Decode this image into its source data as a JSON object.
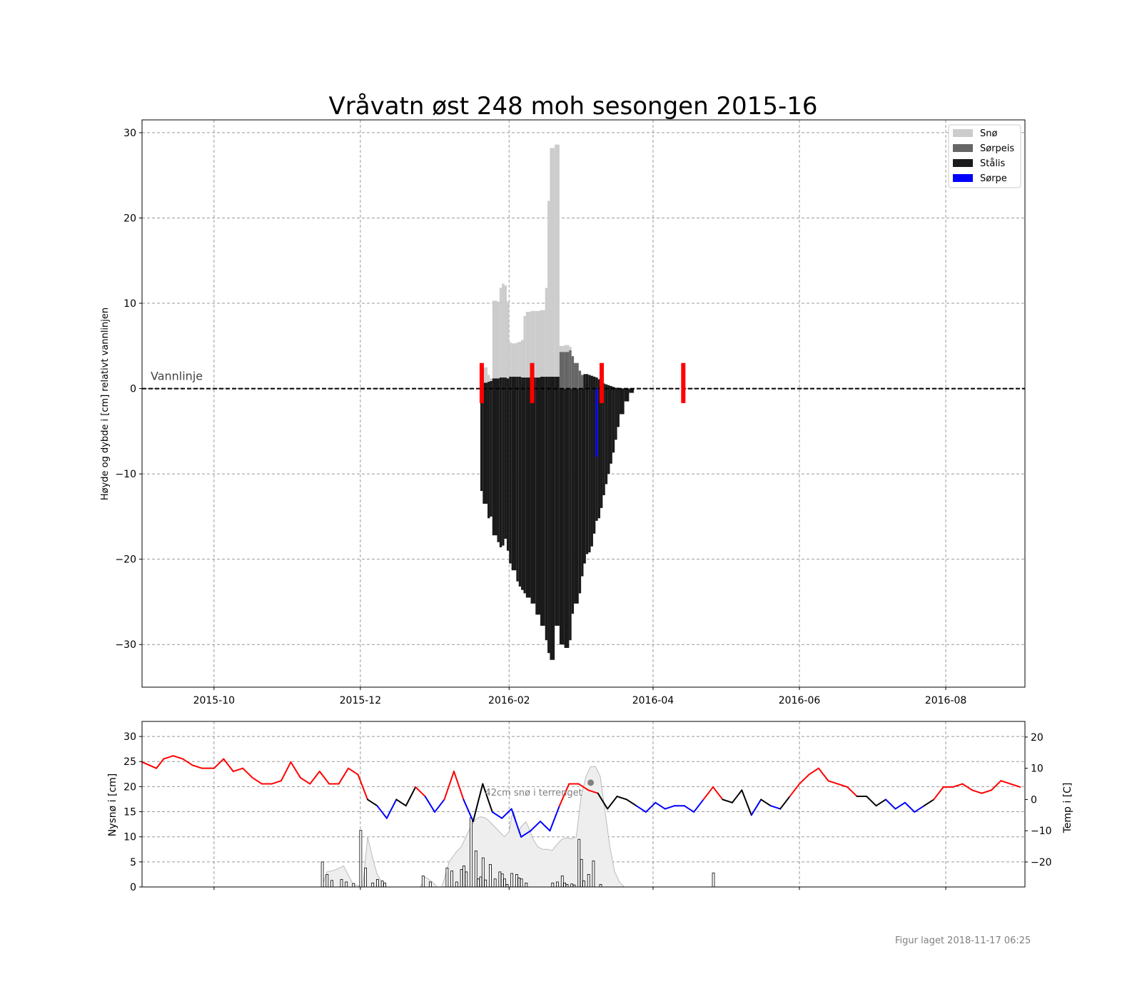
{
  "title": "Vråvatn øst 248 moh sesongen 2015-16",
  "footer": "Figur laget 2018-11-17 06:25",
  "colors": {
    "snow": "#cccccc",
    "slush_ice": "#666666",
    "black_ice": "#1a1a1a",
    "slush": "#0000ff",
    "obs_marker": "#ff0000",
    "temp_warm": "#ff0000",
    "temp_cold": "#0000ff",
    "temp_mid": "#000000"
  },
  "chart_data": [
    {
      "type": "area",
      "title": "Vråvatn øst 248 moh sesongen 2015-16",
      "ylabel": "Høyde og dybde i [cm] relativt vannlinjen",
      "ylim": [
        -35,
        31.5
      ],
      "xlim": [
        "2015-09-01",
        "2016-09-03"
      ],
      "yticks": [
        30,
        20,
        10,
        0,
        -10,
        -20,
        -30
      ],
      "ytick_labels": [
        "30",
        "20",
        "10",
        "0",
        "−10",
        "−20",
        "−30"
      ],
      "xticks": [
        "2015-10-01",
        "2015-12-01",
        "2016-02-01",
        "2016-04-01",
        "2016-06-01",
        "2016-08-01"
      ],
      "xtick_labels": [
        "2015-10",
        "2015-12",
        "2016-02",
        "2016-04",
        "2016-06",
        "2016-08"
      ],
      "grid": true,
      "legend_position": "top-right",
      "legend": [
        "Snø",
        "Sørpeis",
        "Stålis",
        "Sørpe"
      ],
      "waterline": {
        "label": "Vannlinje",
        "y": 0
      },
      "layers": {
        "dates": [
          "2016-01-20",
          "2016-01-21",
          "2016-01-23",
          "2016-01-24",
          "2016-01-25",
          "2016-01-27",
          "2016-01-28",
          "2016-01-29",
          "2016-01-30",
          "2016-01-31",
          "2016-02-01",
          "2016-02-02",
          "2016-02-04",
          "2016-02-05",
          "2016-02-06",
          "2016-02-07",
          "2016-02-08",
          "2016-02-10",
          "2016-02-12",
          "2016-02-14",
          "2016-02-16",
          "2016-02-17",
          "2016-02-18",
          "2016-02-20",
          "2016-02-22",
          "2016-02-24",
          "2016-02-26",
          "2016-02-27",
          "2016-02-28",
          "2016-03-01",
          "2016-03-02",
          "2016-03-03",
          "2016-03-04",
          "2016-03-05",
          "2016-03-06",
          "2016-03-07",
          "2016-03-08",
          "2016-03-09",
          "2016-03-10",
          "2016-03-11",
          "2016-03-12",
          "2016-03-13",
          "2016-03-14",
          "2016-03-15",
          "2016-03-16",
          "2016-03-17",
          "2016-03-18",
          "2016-03-20",
          "2016-03-22",
          "2016-03-24",
          "2016-03-26",
          "2016-03-28",
          "2016-03-30",
          "2016-04-01",
          "2016-04-03",
          "2016-04-05",
          "2016-04-07",
          "2016-04-09",
          "2016-04-11",
          "2016-04-13",
          "2016-04-14",
          "2016-04-15",
          "2016-04-16"
        ],
        "top": [
          2.2,
          2.5,
          1.6,
          1.2,
          10.3,
          10.2,
          11.8,
          12.3,
          12.1,
          10.2,
          5.4,
          5.3,
          5.4,
          5.5,
          5.7,
          8.5,
          9.0,
          9.1,
          9.1,
          9.2,
          11.8,
          22.0,
          28.2,
          28.6,
          5.0,
          5.1,
          4.9,
          3.8,
          3.0,
          2.1,
          1.6,
          1.7,
          1.7,
          1.6,
          1.5,
          1.4,
          1.3,
          1.1,
          0.9,
          0.6,
          0.5,
          0.4,
          0.3,
          0.2,
          0.1,
          0.1,
          0.0,
          0.0,
          0.0,
          0.0,
          0.0,
          0.0,
          0.0,
          0.0,
          0.0,
          0.0,
          0.0,
          0.0,
          0.0,
          0.0,
          0.0,
          0.0,
          0.0
        ],
        "snow": [
          1.3,
          1.8,
          0.8,
          0.3,
          9.1,
          9.0,
          10.5,
          11.0,
          10.8,
          9.0,
          4.0,
          3.9,
          4.0,
          4.1,
          4.4,
          7.2,
          7.7,
          7.8,
          7.8,
          7.8,
          10.4,
          20.6,
          26.8,
          27.2,
          0.7,
          0.8,
          0.4,
          0.0,
          0.0,
          0.0,
          0.0,
          0.0,
          0.0,
          0.0,
          0.0,
          0.0,
          0.0,
          0.0,
          0.0,
          0.0,
          0.0,
          0.0,
          0.0,
          0.0,
          0.0,
          0.0,
          0.0,
          0.0,
          0.0,
          0.0,
          0.0,
          0.0,
          0.0,
          0.0,
          0.0,
          0.0,
          0.0,
          0.0,
          0.0,
          0.0,
          0.0,
          0.0,
          0.0
        ],
        "slush_ice": [
          0,
          0,
          0,
          0,
          0,
          0,
          0,
          0,
          0,
          0,
          0,
          0,
          0,
          0,
          0,
          0,
          0,
          0,
          0,
          0,
          0,
          0,
          0,
          0,
          4.3,
          4.3,
          4.5,
          3.8,
          3.0,
          2.1,
          1.6,
          0,
          0,
          0,
          0,
          0,
          0,
          0,
          0,
          0,
          0,
          0,
          0,
          0,
          0,
          0,
          0,
          0,
          0,
          0,
          0,
          0,
          0,
          0,
          0,
          0,
          0,
          0,
          0,
          0,
          0,
          0,
          0
        ],
        "ice_top": [
          0.9,
          0.7,
          0.8,
          0.9,
          1.2,
          1.2,
          1.3,
          1.3,
          1.3,
          1.2,
          1.4,
          1.4,
          1.4,
          1.4,
          1.3,
          1.3,
          1.3,
          1.3,
          1.3,
          1.4,
          1.4,
          1.4,
          1.4,
          1.4,
          0.0,
          0.0,
          0.0,
          0.0,
          0.0,
          0.0,
          0.0,
          1.7,
          1.7,
          1.6,
          1.5,
          1.4,
          1.3,
          1.1,
          0.9,
          0.6,
          0.5,
          0.4,
          0.3,
          0.2,
          0.1,
          0.1,
          0.0,
          0.0,
          0.0,
          0.0,
          0.0,
          0.0,
          0.0,
          0.0,
          0.0,
          0.0,
          0.0,
          0.0,
          0.0,
          0.0,
          0.0,
          0.0,
          0.0
        ],
        "ice_bottom": [
          -12.0,
          -13.5,
          -15.2,
          -15.0,
          -17.2,
          -18.0,
          -18.6,
          -18.4,
          -17.6,
          -19.0,
          -20.5,
          -21.3,
          -22.6,
          -23.2,
          -23.6,
          -24.0,
          -24.5,
          -25.2,
          -26.5,
          -27.8,
          -29.5,
          -31.0,
          -31.8,
          -27.8,
          -30.0,
          -30.4,
          -29.5,
          -26.4,
          -25.2,
          -24.0,
          -22.0,
          -20.5,
          -19.4,
          -19.2,
          -18.5,
          -17.0,
          -15.5,
          -15.2,
          -14.0,
          -12.5,
          -11.2,
          -10.0,
          -8.8,
          -7.5,
          -6.0,
          -4.5,
          -3.0,
          -1.5,
          -0.5,
          0,
          0,
          0,
          0,
          0,
          0,
          0,
          0,
          0,
          0,
          0,
          0,
          0,
          0
        ],
        "slush_marks": [
          {
            "date": "2016-03-08",
            "from": 0.0,
            "to": -8.0
          }
        ]
      },
      "observations": [
        "2016-01-20",
        "2016-02-10",
        "2016-03-10",
        "2016-04-13"
      ]
    },
    {
      "type": "bar",
      "ylabel": "Nysnø i [cm]",
      "ylabel_right": "Temp i [C]",
      "ylim": [
        0,
        33
      ],
      "y2lim": [
        -28,
        25
      ],
      "yticks": [
        30,
        25,
        20,
        15,
        10,
        5,
        0
      ],
      "ytick_labels": [
        "30",
        "25",
        "20",
        "15",
        "10",
        "5",
        "0"
      ],
      "y2ticks": [
        20,
        10,
        0,
        -10,
        -20
      ],
      "y2tick_labels": [
        "20",
        "10",
        "0",
        "−10",
        "−20"
      ],
      "annotation": {
        "text": "42cm snø i terrenget",
        "date": "2016-03-06",
        "value": 20.5
      },
      "snow_bars": {
        "dates": [
          "2015-11-15",
          "2015-11-17",
          "2015-11-19",
          "2015-11-23",
          "2015-11-25",
          "2015-11-28",
          "2015-12-01",
          "2015-12-03",
          "2015-12-06",
          "2015-12-08",
          "2015-12-10",
          "2015-12-11",
          "2015-12-27",
          "2015-12-30",
          "2016-01-06",
          "2016-01-08",
          "2016-01-10",
          "2016-01-12",
          "2016-01-13",
          "2016-01-14",
          "2016-01-16",
          "2016-01-18",
          "2016-01-19",
          "2016-01-20",
          "2016-01-21",
          "2016-01-22",
          "2016-01-24",
          "2016-01-26",
          "2016-01-28",
          "2016-01-29",
          "2016-01-30",
          "2016-01-31",
          "2016-02-02",
          "2016-02-04",
          "2016-02-05",
          "2016-02-06",
          "2016-02-08",
          "2016-02-19",
          "2016-02-21",
          "2016-02-23",
          "2016-02-24",
          "2016-02-25",
          "2016-02-27",
          "2016-02-28",
          "2016-03-01",
          "2016-03-02",
          "2016-03-03",
          "2016-03-05",
          "2016-03-07",
          "2016-03-10",
          "2016-04-26"
        ],
        "values": [
          5,
          2.5,
          1.3,
          1.5,
          1,
          0.7,
          11.3,
          3.8,
          0.8,
          1.5,
          1.2,
          0.8,
          2.2,
          1,
          3.8,
          3.2,
          1,
          3.5,
          4.2,
          3,
          13.8,
          7.2,
          1.6,
          2,
          5.8,
          1.4,
          4.5,
          1.6,
          3,
          2.6,
          1.6,
          0.5,
          2.7,
          2.5,
          1.8,
          1.6,
          0.8,
          0.8,
          1,
          2.2,
          0.8,
          0.5,
          0.6,
          0.4,
          9.5,
          5.5,
          1.2,
          2.5,
          5.2,
          0.5,
          2.8
        ]
      },
      "snow_depth": {
        "dates": [
          "2015-11-15",
          "2015-11-17",
          "2015-11-20",
          "2015-11-24",
          "2015-11-28",
          "2015-12-02",
          "2015-12-04",
          "2015-12-06",
          "2015-12-08",
          "2015-12-10",
          "2015-12-12",
          "2015-12-14",
          "2015-12-16",
          "2015-12-18",
          "2015-12-20",
          "2015-12-22",
          "2015-12-24",
          "2015-12-26",
          "2015-12-28",
          "2015-12-31",
          "2016-01-02",
          "2016-01-04",
          "2016-01-07",
          "2016-01-10",
          "2016-01-12",
          "2016-01-14",
          "2016-01-16",
          "2016-01-18",
          "2016-01-20",
          "2016-01-22",
          "2016-01-24",
          "2016-01-26",
          "2016-01-28",
          "2016-01-30",
          "2016-02-01",
          "2016-02-02",
          "2016-02-03",
          "2016-02-05",
          "2016-02-06",
          "2016-02-08",
          "2016-02-09",
          "2016-02-11",
          "2016-02-13",
          "2016-02-15",
          "2016-02-17",
          "2016-02-19",
          "2016-02-21",
          "2016-02-23",
          "2016-02-25",
          "2016-02-27",
          "2016-02-29",
          "2016-03-02",
          "2016-03-04",
          "2016-03-06",
          "2016-03-08",
          "2016-03-10",
          "2016-03-12",
          "2016-03-14",
          "2016-03-16",
          "2016-03-18",
          "2016-03-20"
        ],
        "values": [
          0,
          3,
          3.3,
          4.2,
          0.5,
          0,
          10,
          6,
          2.5,
          1,
          0,
          0,
          0,
          0,
          0,
          0,
          0,
          0,
          2,
          1,
          0,
          0,
          5,
          7,
          8,
          10,
          12,
          13.5,
          14,
          13.8,
          13,
          12,
          11,
          10,
          11,
          14,
          15,
          11,
          12,
          13,
          12,
          9.5,
          8,
          7.5,
          7.5,
          7.3,
          8.5,
          9.5,
          9.8,
          9.6,
          10,
          18,
          22,
          24,
          24,
          22,
          15,
          8,
          3,
          1,
          0
        ]
      },
      "temperature": {
        "dates": [
          "2015-09-01",
          "2015-09-04",
          "2015-09-07",
          "2015-09-10",
          "2015-09-14",
          "2015-09-18",
          "2015-09-22",
          "2015-09-26",
          "2015-10-01",
          "2015-10-05",
          "2015-10-09",
          "2015-10-13",
          "2015-10-17",
          "2015-10-21",
          "2015-10-25",
          "2015-10-29",
          "2015-11-02",
          "2015-11-06",
          "2015-11-10",
          "2015-11-14",
          "2015-11-18",
          "2015-11-22",
          "2015-11-26",
          "2015-11-30",
          "2015-12-04",
          "2015-12-08",
          "2015-12-12",
          "2015-12-16",
          "2015-12-20",
          "2015-12-24",
          "2015-12-28",
          "2016-01-01",
          "2016-01-05",
          "2016-01-09",
          "2016-01-13",
          "2016-01-17",
          "2016-01-21",
          "2016-01-25",
          "2016-01-29",
          "2016-02-02",
          "2016-02-06",
          "2016-02-10",
          "2016-02-14",
          "2016-02-18",
          "2016-02-22",
          "2016-02-26",
          "2016-03-01",
          "2016-03-05",
          "2016-03-09",
          "2016-03-13",
          "2016-03-17",
          "2016-03-21",
          "2016-03-25",
          "2016-03-29",
          "2016-04-02",
          "2016-04-06",
          "2016-04-10",
          "2016-04-14",
          "2016-04-18",
          "2016-04-22",
          "2016-04-26",
          "2016-04-30",
          "2016-05-04",
          "2016-05-08",
          "2016-05-12",
          "2016-05-16",
          "2016-05-20",
          "2016-05-24",
          "2016-05-28",
          "2016-06-01",
          "2016-06-05",
          "2016-06-09",
          "2016-06-13",
          "2016-06-17",
          "2016-06-21",
          "2016-06-25",
          "2016-06-29",
          "2016-07-03",
          "2016-07-07",
          "2016-07-11",
          "2016-07-15",
          "2016-07-19",
          "2016-07-23",
          "2016-07-27",
          "2016-07-31",
          "2016-08-04",
          "2016-08-08",
          "2016-08-12",
          "2016-08-16",
          "2016-08-20",
          "2016-08-24",
          "2016-08-28",
          "2016-09-01"
        ],
        "values": [
          12,
          11,
          10,
          13,
          14,
          13,
          11,
          10,
          10,
          13,
          9,
          10,
          7,
          5,
          5,
          6,
          12,
          7,
          5,
          9,
          5,
          5,
          10,
          8,
          0,
          -2,
          -6,
          0,
          -2,
          4,
          1,
          -4,
          0,
          9,
          0,
          -7,
          5,
          -4,
          -6,
          -3,
          -12,
          -10,
          -7,
          -10,
          -2,
          5,
          5,
          3,
          2,
          -3,
          1,
          0,
          -2,
          -4,
          -1,
          -3,
          -2,
          -2,
          -4,
          0,
          4,
          0,
          -1,
          3,
          -5,
          0,
          -2,
          -3,
          1,
          5,
          8,
          10,
          6,
          5,
          4,
          1,
          1,
          -2,
          0,
          -3,
          -1,
          -4,
          -2,
          0,
          4,
          4,
          5,
          3,
          2,
          3,
          6,
          5,
          4
        ]
      }
    }
  ]
}
